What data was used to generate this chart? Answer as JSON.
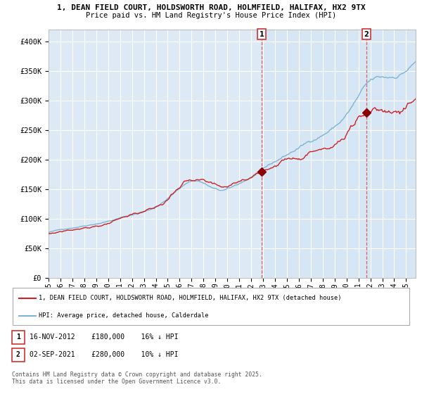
{
  "title_line1": "1, DEAN FIELD COURT, HOLDSWORTH ROAD, HOLMFIELD, HALIFAX, HX2 9TX",
  "title_line2": "Price paid vs. HM Land Registry's House Price Index (HPI)",
  "legend_property": "1, DEAN FIELD COURT, HOLDSWORTH ROAD, HOLMFIELD, HALIFAX, HX2 9TX (detached house)",
  "legend_hpi": "HPI: Average price, detached house, Calderdale",
  "annotation1_date": "16-NOV-2012",
  "annotation1_price": "£180,000",
  "annotation1_hpi": "16% ↓ HPI",
  "annotation1_year": 2012.88,
  "annotation1_value": 180000,
  "annotation2_date": "02-SEP-2021",
  "annotation2_price": "£280,000",
  "annotation2_hpi": "10% ↓ HPI",
  "annotation2_year": 2021.67,
  "annotation2_value": 280000,
  "hpi_color": "#7fb3d3",
  "property_color": "#cc2222",
  "background_color": "#ddeaf6",
  "grid_color": "#ffffff",
  "footer_text": "Contains HM Land Registry data © Crown copyright and database right 2025.\nThis data is licensed under the Open Government Licence v3.0.",
  "ylim": [
    0,
    420000
  ],
  "yticks": [
    0,
    50000,
    100000,
    150000,
    200000,
    250000,
    300000,
    350000,
    400000
  ],
  "ytick_labels": [
    "£0",
    "£50K",
    "£100K",
    "£150K",
    "£200K",
    "£250K",
    "£300K",
    "£350K",
    "£400K"
  ],
  "start_year": 1995.0,
  "end_year": 2025.8
}
